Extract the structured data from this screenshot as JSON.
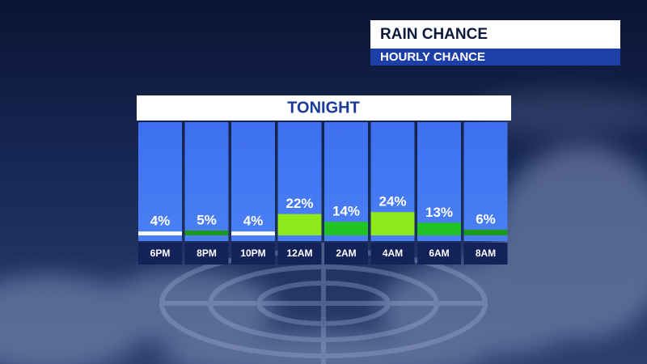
{
  "header": {
    "title": "RAIN CHANCE",
    "subtitle": "HOURLY CHANCE"
  },
  "chart_data": {
    "type": "bar",
    "title": "TONIGHT",
    "categories": [
      "6PM",
      "8PM",
      "10PM",
      "12AM",
      "2AM",
      "4AM",
      "6AM",
      "8AM"
    ],
    "values": [
      4,
      5,
      4,
      22,
      14,
      24,
      13,
      6
    ],
    "value_labels": [
      "4%",
      "5%",
      "4%",
      "22%",
      "14%",
      "24%",
      "13%",
      "6%"
    ],
    "colors": [
      "#ffffff",
      "#1c9a1c",
      "#ffffff",
      "#8ee81c",
      "#22c322",
      "#8ee81c",
      "#22c322",
      "#1c9a1c"
    ]
  }
}
